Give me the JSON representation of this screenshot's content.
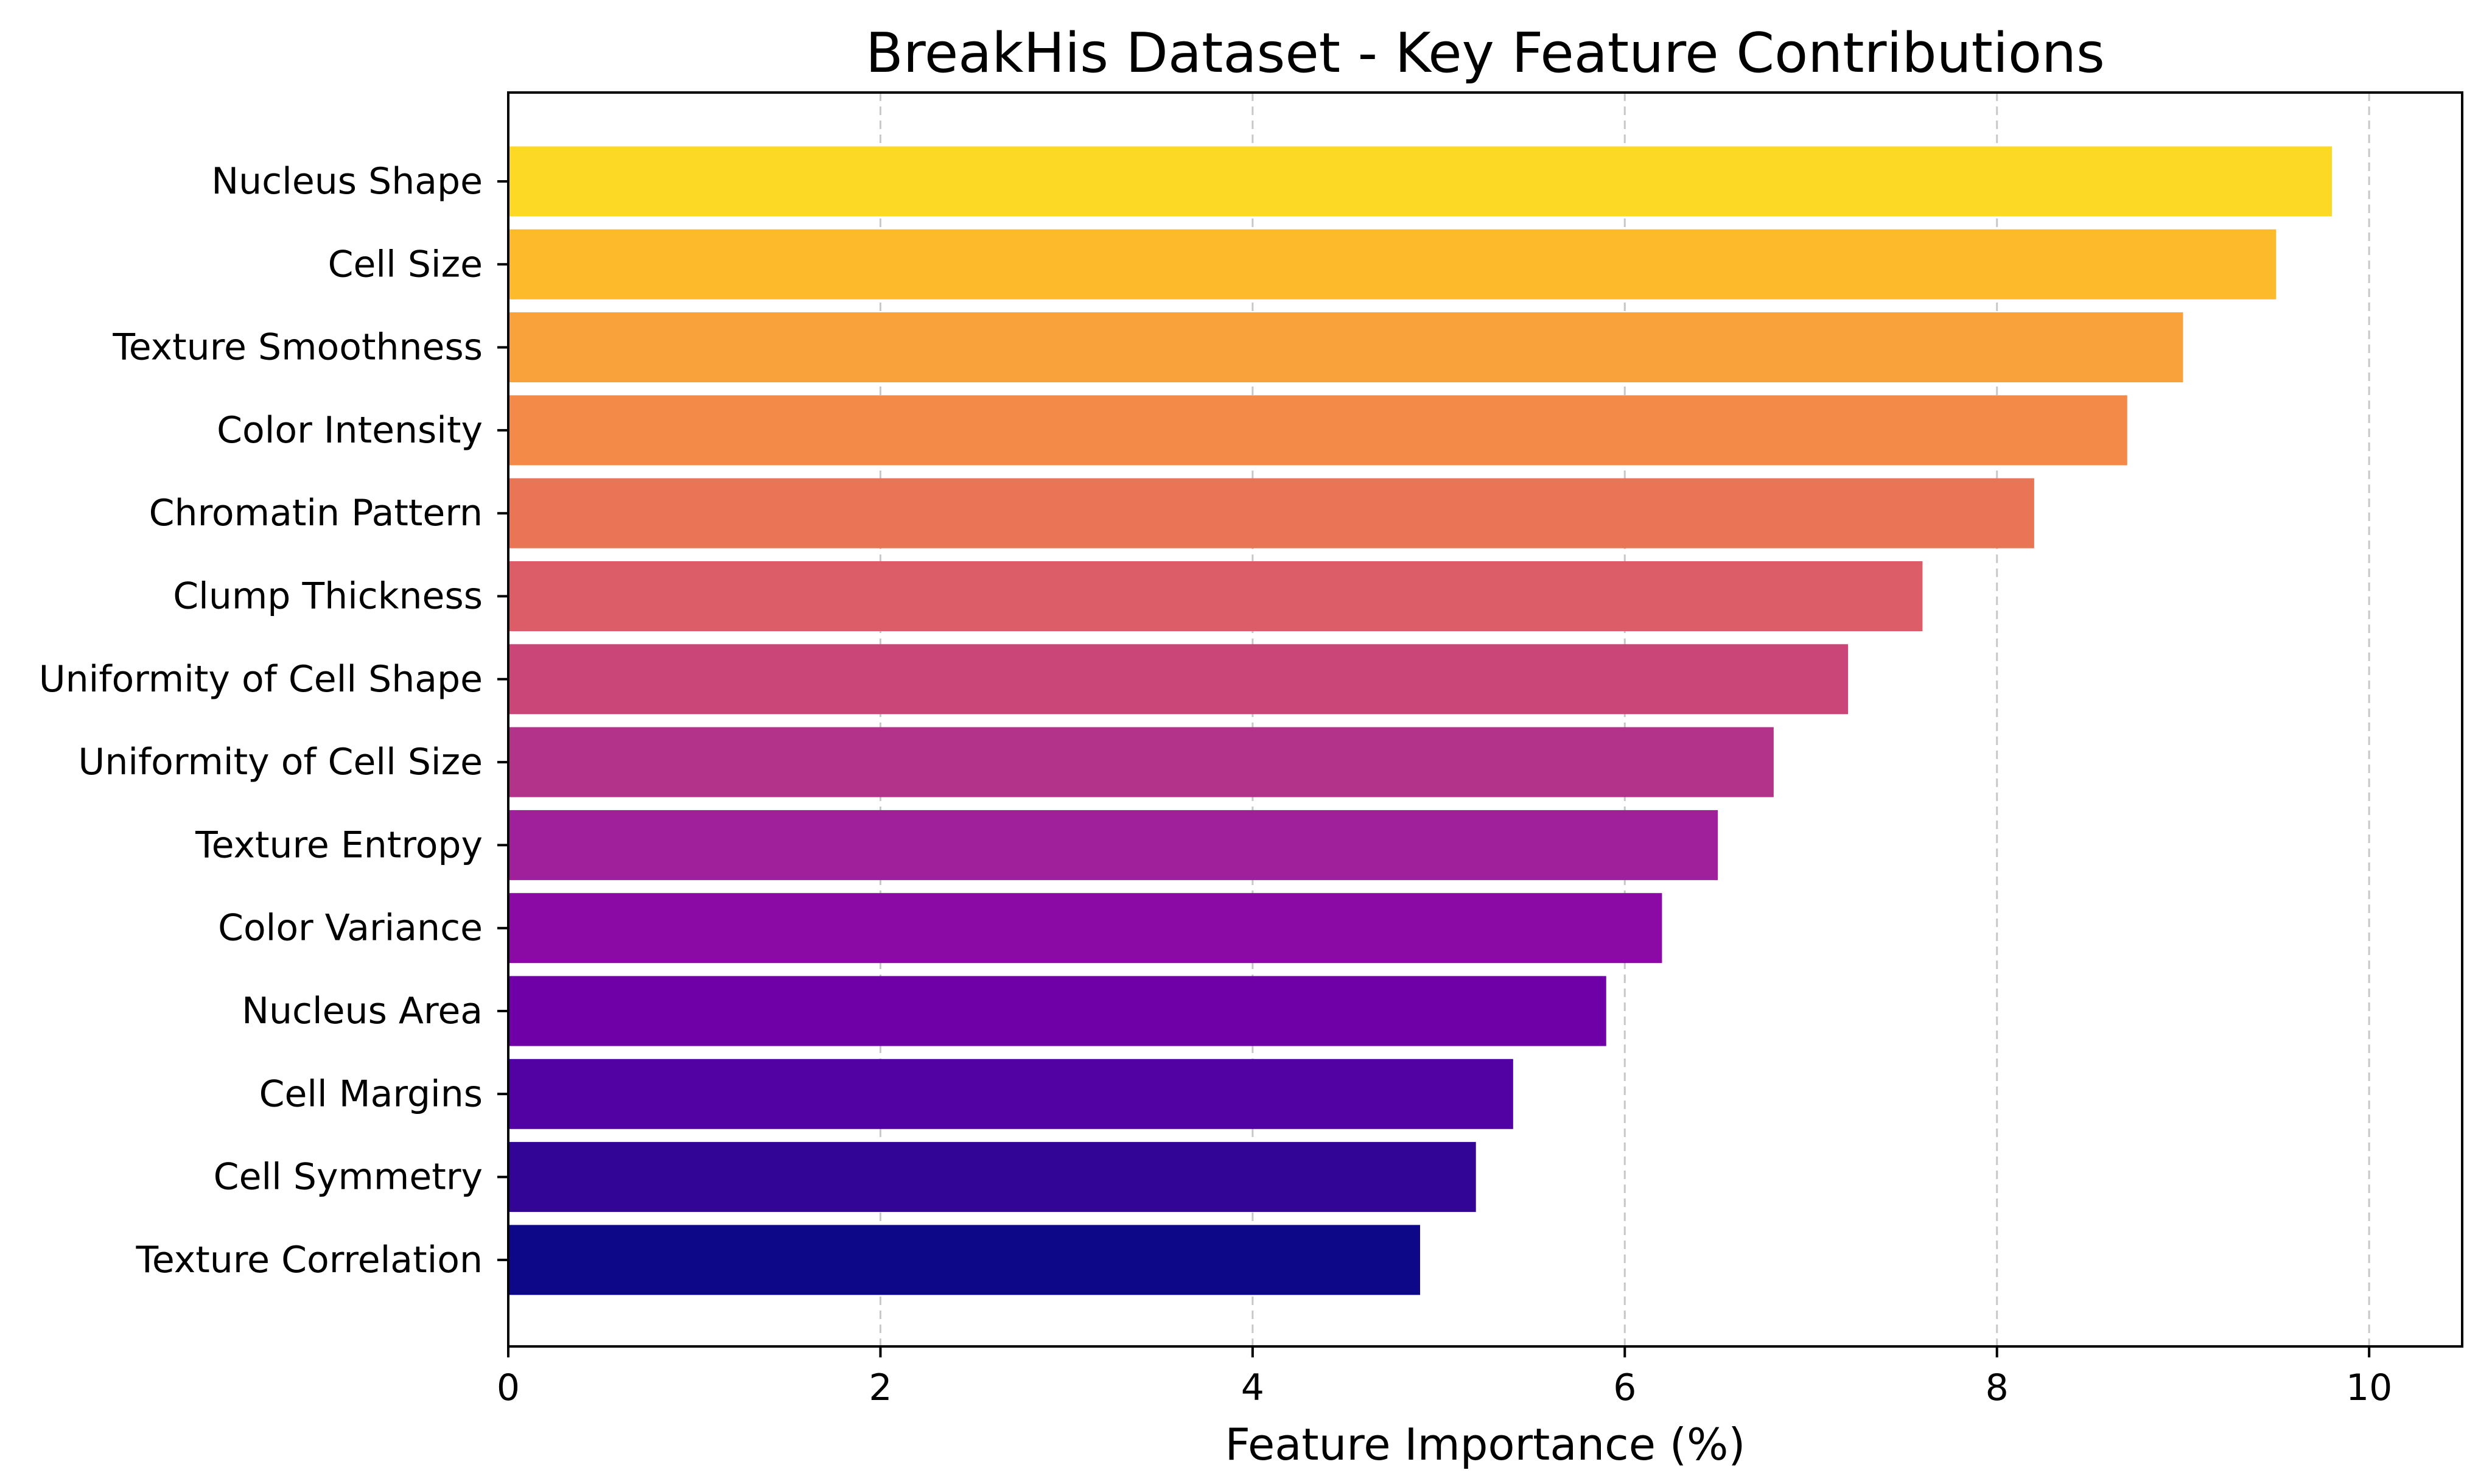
{
  "chart_data": {
    "type": "bar",
    "orientation": "horizontal",
    "title": "BreakHis Dataset - Key Feature Contributions",
    "xlabel": "Feature Importance (%)",
    "ylabel": "",
    "xlim": [
      0,
      10.5
    ],
    "xticks": [
      0,
      2,
      4,
      6,
      8,
      10
    ],
    "xtick_labels": [
      "0",
      "2",
      "4",
      "6",
      "8",
      "10"
    ],
    "grid": "x-axis, dashed",
    "categories": [
      "Nucleus Shape",
      "Cell Size",
      "Texture Smoothness",
      "Color Intensity",
      "Chromatin Pattern",
      "Clump Thickness",
      "Uniformity of Cell Shape",
      "Uniformity of Cell Size",
      "Texture Entropy",
      "Color Variance",
      "Nucleus Area",
      "Cell Margins",
      "Cell Symmetry",
      "Texture Correlation"
    ],
    "values": [
      9.8,
      9.5,
      9.0,
      8.7,
      8.2,
      7.6,
      7.2,
      6.8,
      6.5,
      6.2,
      5.9,
      5.4,
      5.2,
      4.9
    ],
    "colors": [
      "#fcd925",
      "#fdbb2b",
      "#f9a13b",
      "#f38a47",
      "#e97456",
      "#dc5c67",
      "#ca4678",
      "#b4338a",
      "#a01f9b",
      "#8b0aa5",
      "#6f00a8",
      "#5202a3",
      "#330597",
      "#0d0887"
    ],
    "colormap": "plasma"
  }
}
